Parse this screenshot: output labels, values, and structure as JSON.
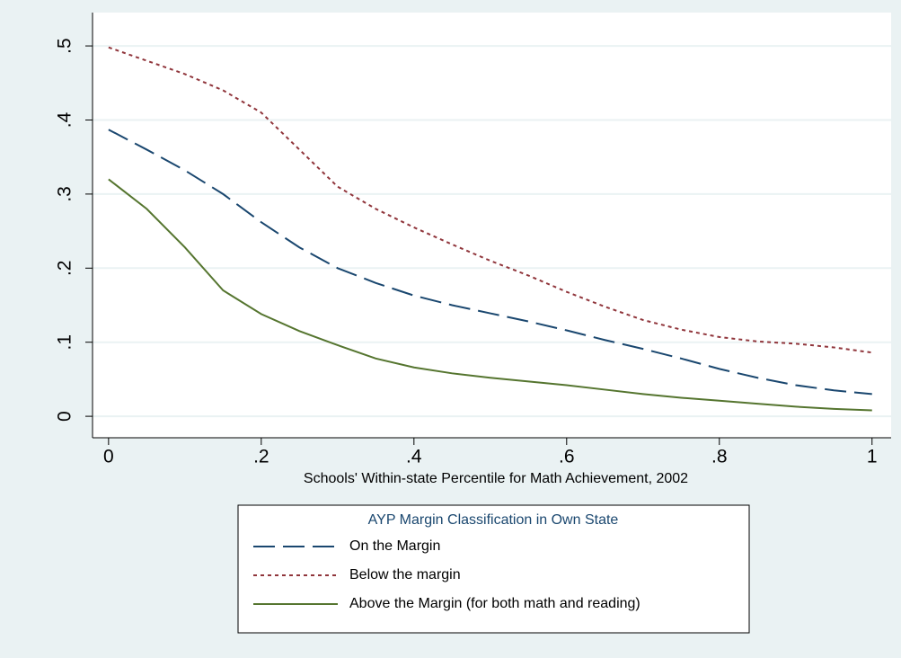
{
  "chart_data": {
    "type": "line",
    "x_label": "Schools' Within-state Percentile for Math Achievement, 2002",
    "legend_title": "AYP Margin Classification in Own State",
    "x": [
      0,
      0.05,
      0.1,
      0.15,
      0.2,
      0.25,
      0.3,
      0.35,
      0.4,
      0.45,
      0.5,
      0.55,
      0.6,
      0.65,
      0.7,
      0.75,
      0.8,
      0.85,
      0.9,
      0.95,
      1
    ],
    "series": [
      {
        "name": "On the Margin",
        "color": "#1a476f",
        "dash": "dash",
        "values": [
          0.387,
          0.36,
          0.332,
          0.3,
          0.262,
          0.228,
          0.2,
          0.18,
          0.163,
          0.15,
          0.139,
          0.128,
          0.116,
          0.103,
          0.091,
          0.078,
          0.064,
          0.052,
          0.042,
          0.035,
          0.03
        ]
      },
      {
        "name": "Below the margin",
        "color": "#90353b",
        "dash": "dot",
        "values": [
          0.498,
          0.48,
          0.462,
          0.44,
          0.41,
          0.36,
          0.31,
          0.28,
          0.255,
          0.232,
          0.21,
          0.19,
          0.168,
          0.148,
          0.13,
          0.117,
          0.107,
          0.101,
          0.098,
          0.093,
          0.086
        ]
      },
      {
        "name": "Above the Margin (for both math and reading)",
        "color": "#55752f",
        "dash": "solid",
        "values": [
          0.32,
          0.28,
          0.228,
          0.17,
          0.138,
          0.115,
          0.096,
          0.078,
          0.066,
          0.058,
          0.052,
          0.047,
          0.042,
          0.036,
          0.03,
          0.025,
          0.021,
          0.017,
          0.013,
          0.01,
          0.008
        ]
      }
    ],
    "xlim": [
      -0.021,
      1.025
    ],
    "ylim": [
      -0.029,
      0.545
    ],
    "xticks": [
      0,
      {
        "value": 0.2,
        "label": ".2"
      },
      {
        "value": 0.4,
        "label": ".4"
      },
      {
        "value": 0.6,
        "label": ".6"
      },
      {
        "value": 0.8,
        "label": ".8"
      },
      1
    ],
    "yticks": [
      0,
      {
        "value": 0.1,
        "label": ".1"
      },
      {
        "value": 0.2,
        "label": ".2"
      },
      {
        "value": 0.3,
        "label": ".3"
      },
      {
        "value": 0.4,
        "label": ".4"
      },
      {
        "value": 0.5,
        "label": ".5"
      }
    ],
    "grid": true
  }
}
